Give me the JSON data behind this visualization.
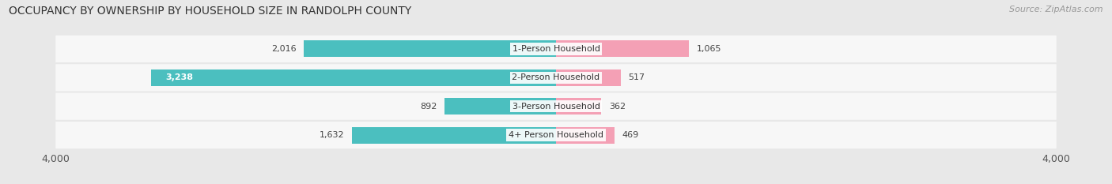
{
  "title": "OCCUPANCY BY OWNERSHIP BY HOUSEHOLD SIZE IN RANDOLPH COUNTY",
  "source": "Source: ZipAtlas.com",
  "categories": [
    "1-Person Household",
    "2-Person Household",
    "3-Person Household",
    "4+ Person Household"
  ],
  "owner_values": [
    2016,
    3238,
    892,
    1632
  ],
  "renter_values": [
    1065,
    517,
    362,
    469
  ],
  "owner_color": "#4bbfbf",
  "renter_color": "#f4a0b5",
  "axis_max": 4000,
  "background_color": "#e8e8e8",
  "bar_background": "#f7f7f7",
  "row_sep_color": "#d0d0d0",
  "title_fontsize": 10,
  "source_fontsize": 8,
  "value_fontsize": 8,
  "cat_fontsize": 8,
  "tick_fontsize": 9,
  "legend_fontsize": 9,
  "owner_label_threshold": 3000
}
